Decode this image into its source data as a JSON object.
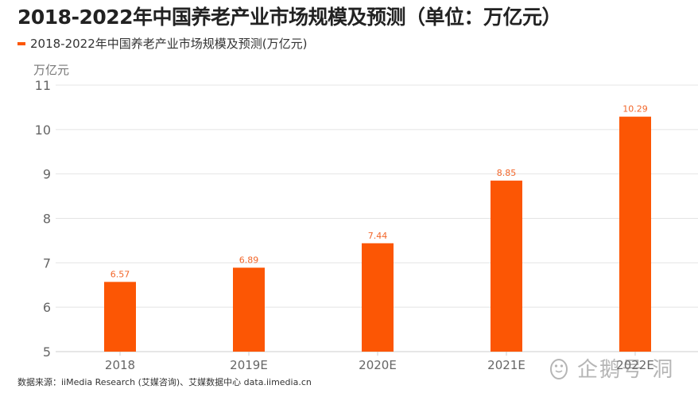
{
  "title": "2018-2022年中国养老产业市场规模及预测（单位：万亿元）",
  "legend_label": "2018-2022年中国养老产业市场规模及预测(万亿元)",
  "unit_label": "万亿元",
  "source": "数据来源：iiMedia Research (艾媒咨询)、艾媒数据中心 data.iimedia.cn",
  "watermark": {
    "text": "企鹅号 洞",
    "icon": "penguin-icon"
  },
  "colors": {
    "bar": "#fc5604",
    "label": "#f2662a",
    "axis_text": "#666666",
    "grid": "#e4e4e4"
  },
  "chart_data": {
    "type": "bar",
    "categories": [
      "2018",
      "2019E",
      "2020E",
      "2021E",
      "2022E"
    ],
    "series": [
      {
        "name": "2018-2022年中国养老产业市场规模及预测(万亿元)",
        "values": [
          6.57,
          6.89,
          7.44,
          8.85,
          10.29
        ]
      }
    ],
    "data_labels": [
      "6.57",
      "6.89",
      "7.44",
      "8.85",
      "10.29"
    ],
    "title": "2018-2022年中国养老产业市场规模及预测（单位：万亿元）",
    "ylabel": "万亿元",
    "xlabel": "",
    "ylim": [
      5,
      11
    ],
    "yticks": [
      5,
      6,
      7,
      8,
      9,
      10,
      11
    ],
    "grid": true,
    "legend_position": "top-left"
  }
}
